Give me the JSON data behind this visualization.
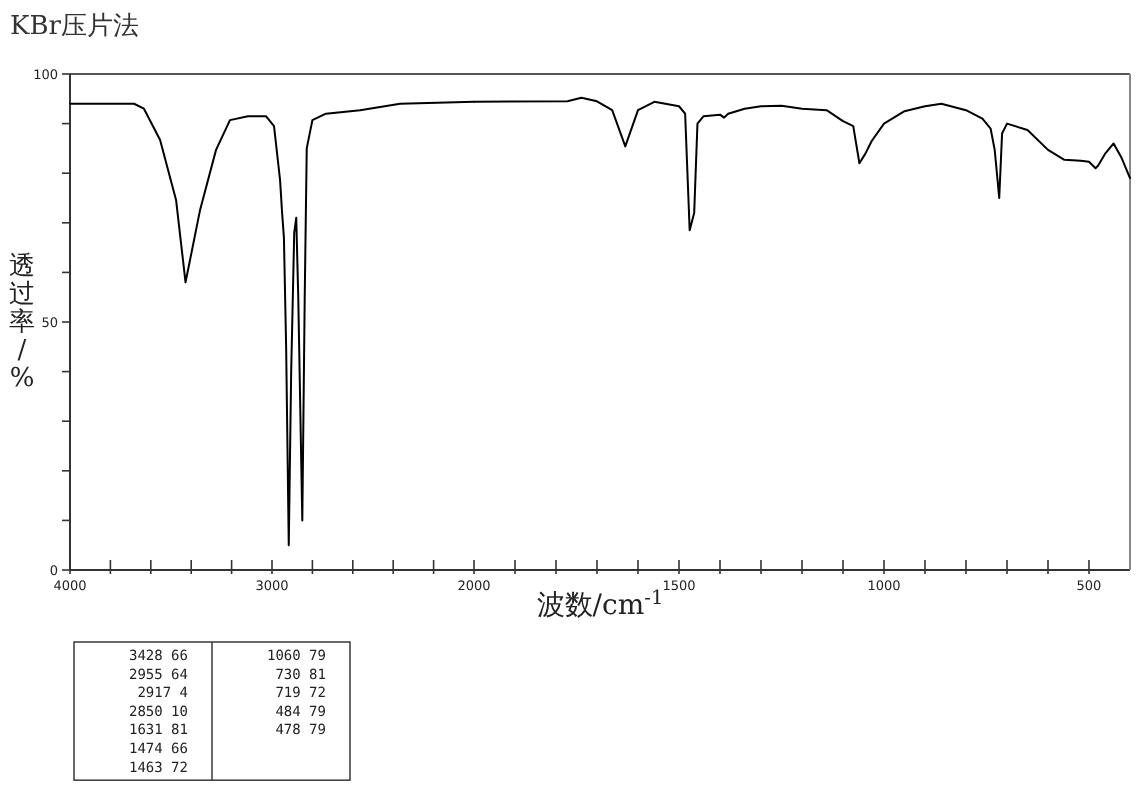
{
  "chart_data": [
    {
      "type": "line",
      "title": "KBr压片法",
      "ylabel": "透过率/%",
      "color": "#000000",
      "x": [
        4000,
        3683,
        3634,
        3554,
        3475,
        3428,
        3356,
        3277,
        3208,
        3119,
        3030,
        2990,
        2960,
        2950,
        2941,
        2930,
        2917,
        2905,
        2890,
        2880,
        2870,
        2850,
        2838,
        2828,
        2800,
        2733,
        2564,
        2366,
        2000
      ],
      "values": [
        94,
        94,
        93,
        86.7,
        74.6,
        58,
        72.6,
        84.7,
        90.7,
        91.5,
        91.5,
        89.5,
        78.6,
        72,
        67,
        45,
        5,
        40,
        68,
        71,
        55,
        10,
        55,
        85,
        90.7,
        92,
        92.7,
        94,
        94.4
      ],
      "xlim": [
        4000,
        2000
      ],
      "ylim": [
        0,
        100
      ],
      "xticks": [
        4000,
        {
          "value": 3800,
          "label": null
        },
        {
          "value": 3600,
          "label": null
        },
        {
          "value": 3400,
          "label": null
        },
        {
          "value": 3200,
          "label": null
        },
        3000,
        {
          "value": 2800,
          "label": null
        },
        {
          "value": 2600,
          "label": null
        },
        {
          "value": 2400,
          "label": null
        },
        {
          "value": 2200,
          "label": null
        },
        2000
      ],
      "yticks": [
        0,
        {
          "value": 10,
          "label": null
        },
        {
          "value": 20,
          "label": null
        },
        {
          "value": 30,
          "label": null
        },
        {
          "value": 40,
          "label": null
        },
        50,
        {
          "value": 60,
          "label": null
        },
        {
          "value": 70,
          "label": null
        },
        {
          "value": 80,
          "label": null
        },
        {
          "value": 90,
          "label": null
        },
        100
      ],
      "annotations": [
        "3428 66",
        "2955 64",
        "2917 4",
        "2850 10",
        "1631 81",
        "1474 66",
        "1463 72",
        "1060 79",
        "730 81",
        "719 72",
        "484 79",
        "478 79"
      ]
    },
    {
      "type": "line",
      "xlabel": "波数/cm$^{-1}$",
      "color": "#000000",
      "x": [
        2000,
        1772,
        1738,
        1700,
        1663,
        1631,
        1600,
        1560,
        1500,
        1485,
        1474,
        1463,
        1455,
        1440,
        1400,
        1390,
        1380,
        1340,
        1300,
        1250,
        1200,
        1140,
        1100,
        1075,
        1060,
        1045,
        1030,
        1000,
        950,
        900,
        860,
        800,
        760,
        740,
        730,
        719,
        712,
        700,
        650,
        600,
        560,
        520,
        500,
        484,
        478,
        460,
        440,
        420,
        400
      ],
      "values": [
        94.4,
        94.5,
        95.2,
        94.5,
        92.7,
        85.4,
        92.7,
        94.4,
        93.5,
        92,
        68.5,
        72,
        90,
        91.5,
        91.8,
        91.2,
        92,
        93,
        93.5,
        93.6,
        93,
        92.7,
        90.5,
        89.5,
        82,
        84,
        86.5,
        90,
        92.5,
        93.5,
        94,
        92.7,
        91,
        89,
        84.7,
        75,
        88,
        90,
        88.7,
        84.7,
        82.7,
        82.5,
        82.3,
        81,
        81.5,
        84,
        86,
        83,
        79
      ],
      "xlim": [
        2000,
        400
      ],
      "ylim": [
        0,
        100
      ],
      "xticks": [
        {
          "value": 1900,
          "label": null
        },
        {
          "value": 1800,
          "label": null
        },
        {
          "value": 1700,
          "label": null
        },
        {
          "value": 1600,
          "label": null
        },
        1500,
        {
          "value": 1400,
          "label": null
        },
        {
          "value": 1300,
          "label": null
        },
        {
          "value": 1200,
          "label": null
        },
        {
          "value": 1100,
          "label": null
        },
        1000,
        {
          "value": 900,
          "label": null
        },
        {
          "value": 800,
          "label": null
        },
        {
          "value": 700,
          "label": null
        },
        {
          "value": 600,
          "label": null
        },
        500
      ],
      "tick_labels": "x"
    }
  ]
}
